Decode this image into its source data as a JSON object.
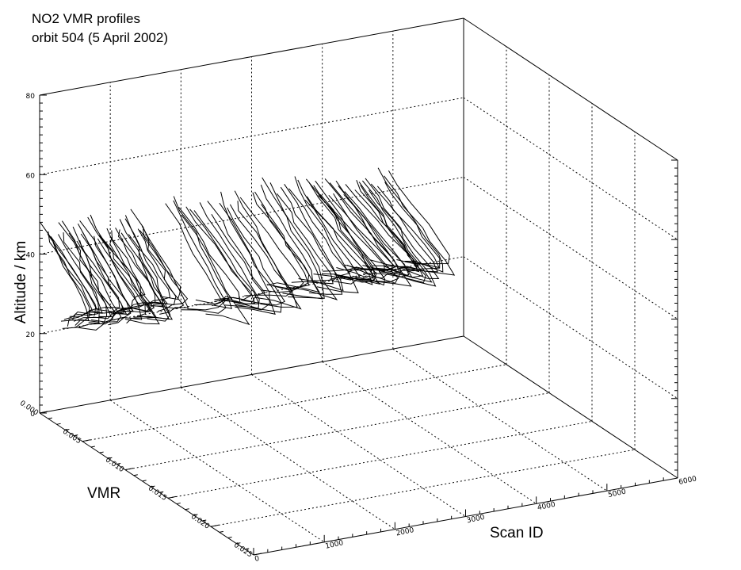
{
  "chart_data": {
    "type": "line",
    "projection": "3d",
    "title_lines": [
      "NO2 VMR profiles",
      "orbit 504 (5 April 2002)"
    ],
    "x_axis": {
      "label": "Scan ID",
      "range": [
        0,
        6000
      ],
      "ticks": [
        "0",
        "1000",
        "2000",
        "3000",
        "4000",
        "5000",
        "6000"
      ]
    },
    "y_axis": {
      "label": "VMR",
      "range": [
        0,
        0.025
      ],
      "ticks": [
        "0.000",
        "0.005",
        "0.010",
        "0.015",
        "0.020",
        "0.025"
      ]
    },
    "z_axis": {
      "label": "Altitude / km",
      "range": [
        0,
        80
      ],
      "ticks": [
        "0",
        "20",
        "40",
        "60",
        "80"
      ]
    },
    "grid": true,
    "line_color": "#000000",
    "series_note": "vertical NO2 profiles, one per scan",
    "profile_groups": [
      {
        "scan_start": 0,
        "scan_end": 1400,
        "count": 38,
        "vmr_low": 0.0015,
        "vmr_high": 0.006,
        "alt_base": 23,
        "alt_top": 48
      },
      {
        "scan_start": 1700,
        "scan_end": 3600,
        "count": 30,
        "vmr_low": 0.002,
        "vmr_high": 0.008,
        "alt_base": 23,
        "alt_top": 50
      },
      {
        "scan_start": 3600,
        "scan_end": 4800,
        "count": 30,
        "vmr_low": 0.003,
        "vmr_high": 0.009,
        "alt_base": 25,
        "alt_top": 48
      }
    ]
  }
}
